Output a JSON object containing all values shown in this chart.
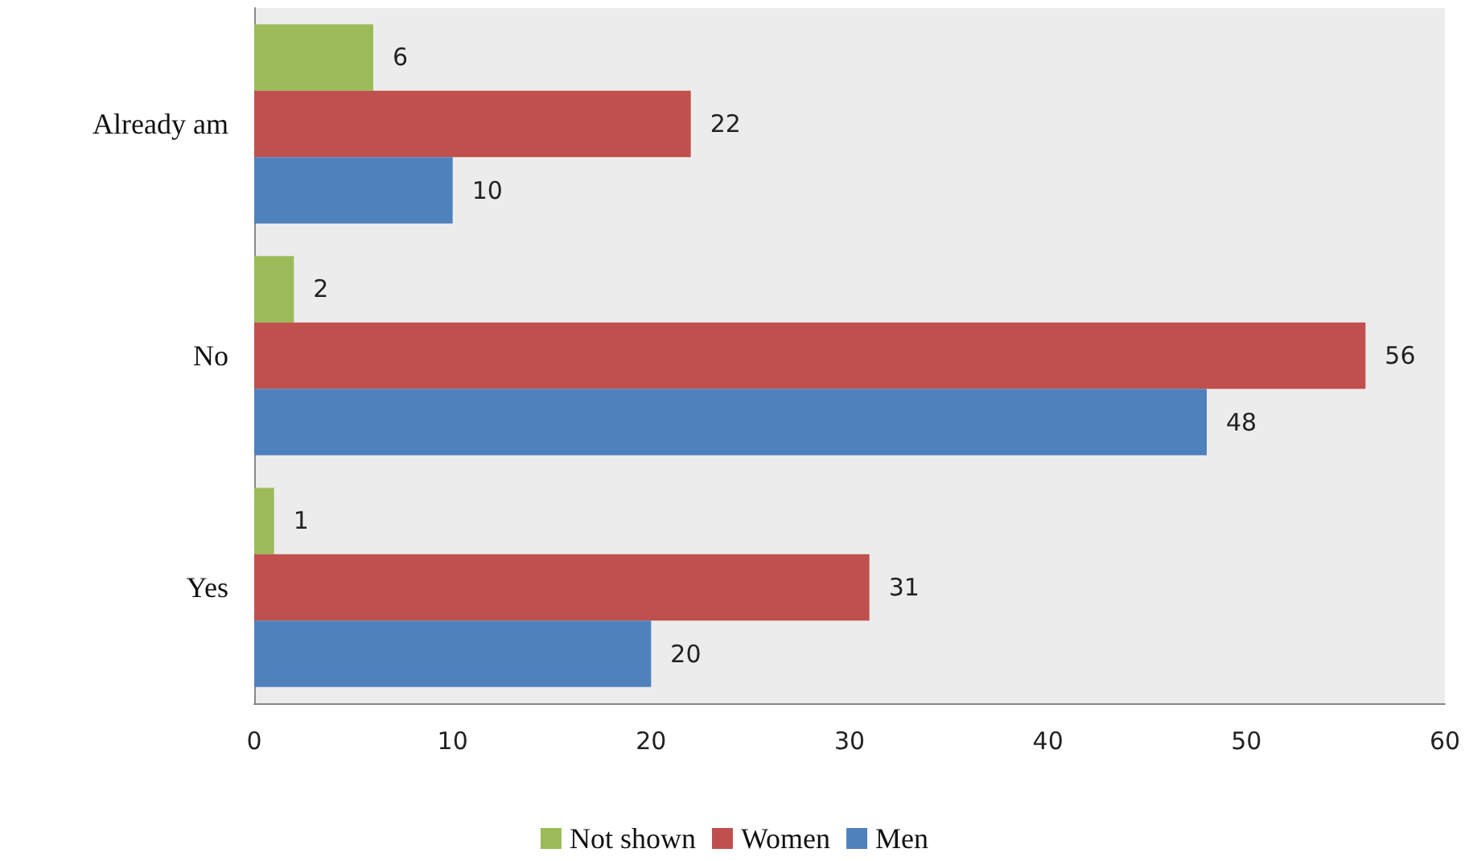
{
  "chart_data": {
    "type": "bar",
    "orientation": "horizontal",
    "categories": [
      "Already am",
      "No",
      "Yes"
    ],
    "series": [
      {
        "name": "Not shown",
        "color": "#9bbb59",
        "values": [
          6,
          2,
          1
        ]
      },
      {
        "name": "Women",
        "color": "#c0504d",
        "values": [
          22,
          56,
          31
        ]
      },
      {
        "name": "Men",
        "color": "#4f81bd",
        "values": [
          10,
          48,
          20
        ]
      }
    ],
    "xlim": [
      0,
      60
    ],
    "xticks": [
      0,
      10,
      20,
      30,
      40,
      50,
      60
    ],
    "data_labels": true,
    "grid": false,
    "legend": "bottom"
  }
}
